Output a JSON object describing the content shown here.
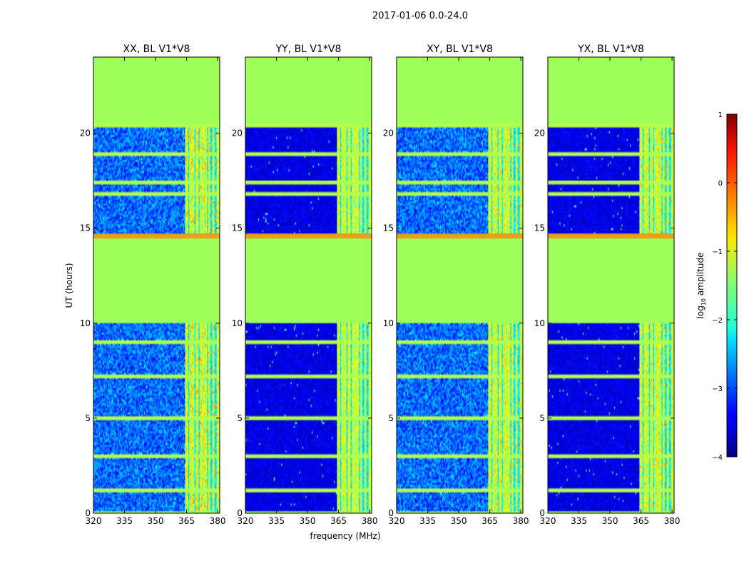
{
  "chart_data": {
    "type": "heatmap",
    "title": "2017-01-06 0.0-24.0",
    "xlabel": "frequency (MHz)",
    "ylabel": "UT (hours)",
    "xlim": [
      320,
      381
    ],
    "ylim": [
      0,
      24
    ],
    "xticks": [
      320,
      335,
      350,
      365,
      380
    ],
    "yticks": [
      0,
      5,
      10,
      15,
      20
    ],
    "panels": [
      {
        "title": "XX, BL V1*V8",
        "pol": "XX"
      },
      {
        "title": "YY, BL V1*V8",
        "pol": "YY"
      },
      {
        "title": "XY, BL V1*V8",
        "pol": "XY"
      },
      {
        "title": "YX, BL V1*V8",
        "pol": "YX"
      }
    ],
    "colorbar": {
      "label_prefix": "log",
      "label_sub": "10",
      "label_suffix": " amplitude",
      "range": [
        -4,
        1
      ],
      "ticks": [
        1,
        0,
        -1,
        -2,
        -3,
        -4
      ],
      "tick_labels": [
        "1",
        "0",
        "−1",
        "−2",
        "−3",
        "−4"
      ]
    },
    "masked_time_ranges_h": [
      [
        0,
        0.05
      ],
      [
        10,
        14.7
      ],
      [
        20.5,
        24
      ]
    ],
    "band_mhz": [
      364,
      381
    ],
    "masked_value": -1.3
  },
  "colors": {
    "masked": "#9eff5b",
    "background": "#ffffff"
  }
}
